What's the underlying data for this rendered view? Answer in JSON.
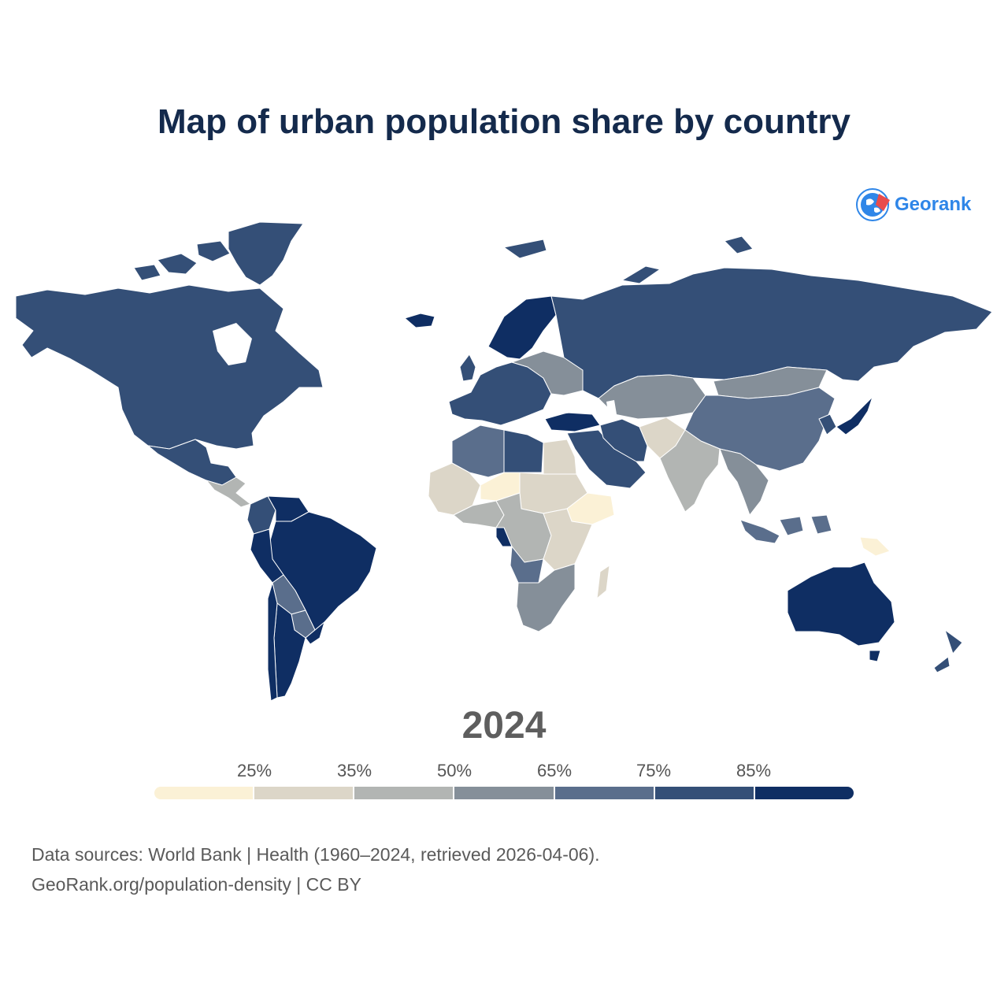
{
  "title": "Map of urban population share by country",
  "brand": {
    "name": "Georank",
    "icon": "globe-logo-icon",
    "color": "#2f86e8",
    "accent": "#e84c4c"
  },
  "year": "2024",
  "legend": {
    "thresholds": [
      "25%",
      "35%",
      "50%",
      "65%",
      "75%",
      "85%"
    ],
    "colors": [
      "#fbf1d6",
      "#dcd6c8",
      "#b2b5b3",
      "#858f99",
      "#5a6e8c",
      "#344f77",
      "#0f2e63"
    ]
  },
  "map": {
    "border_color": "#ffffff",
    "ocean_color": "#ffffff",
    "regions": [
      {
        "name": "North America",
        "share_class": 6
      },
      {
        "name": "Greenland",
        "share_class": 6
      },
      {
        "name": "Mexico",
        "share_class": 6
      },
      {
        "name": "Central America",
        "share_class": 3
      },
      {
        "name": "Venezuela",
        "share_class": 7
      },
      {
        "name": "Colombia",
        "share_class": 6
      },
      {
        "name": "Brazil",
        "share_class": 7
      },
      {
        "name": "Peru",
        "share_class": 7
      },
      {
        "name": "Bolivia",
        "share_class": 5
      },
      {
        "name": "Paraguay",
        "share_class": 5
      },
      {
        "name": "Argentina",
        "share_class": 7
      },
      {
        "name": "Chile",
        "share_class": 7
      },
      {
        "name": "Uruguay",
        "share_class": 7
      },
      {
        "name": "Iceland",
        "share_class": 7
      },
      {
        "name": "Europe",
        "share_class": 6
      },
      {
        "name": "Scandinavia",
        "share_class": 7
      },
      {
        "name": "Eastern Europe",
        "share_class": 4
      },
      {
        "name": "Russia",
        "share_class": 6
      },
      {
        "name": "Turkey",
        "share_class": 7
      },
      {
        "name": "Central Asia",
        "share_class": 4
      },
      {
        "name": "Mongolia",
        "share_class": 4
      },
      {
        "name": "China",
        "share_class": 5
      },
      {
        "name": "Japan",
        "share_class": 7
      },
      {
        "name": "Korea",
        "share_class": 6
      },
      {
        "name": "Middle East",
        "share_class": 6
      },
      {
        "name": "Iran",
        "share_class": 6
      },
      {
        "name": "Afghanistan and Pakistan",
        "share_class": 2
      },
      {
        "name": "India",
        "share_class": 3
      },
      {
        "name": "Southeast Asia",
        "share_class": 4
      },
      {
        "name": "Indonesia",
        "share_class": 5
      },
      {
        "name": "Papua New Guinea",
        "share_class": 1
      },
      {
        "name": "Australia",
        "share_class": 7
      },
      {
        "name": "New Zealand",
        "share_class": 6
      },
      {
        "name": "North Africa",
        "share_class": 5
      },
      {
        "name": "Libya",
        "share_class": 6
      },
      {
        "name": "Egypt",
        "share_class": 2
      },
      {
        "name": "Sahel",
        "share_class": 2
      },
      {
        "name": "Niger",
        "share_class": 1
      },
      {
        "name": "Ethiopia",
        "share_class": 1
      },
      {
        "name": "West Africa",
        "share_class": 3
      },
      {
        "name": "Central Africa",
        "share_class": 3
      },
      {
        "name": "Gabon",
        "share_class": 7
      },
      {
        "name": "Angola",
        "share_class": 5
      },
      {
        "name": "East Africa",
        "share_class": 2
      },
      {
        "name": "Southern Africa",
        "share_class": 4
      },
      {
        "name": "Madagascar",
        "share_class": 2
      }
    ]
  },
  "footer": {
    "line1": "Data sources: World Bank | Health (1960–2024, retrieved 2026-04-06).",
    "line2": "GeoRank.org/population-density | CC BY"
  }
}
